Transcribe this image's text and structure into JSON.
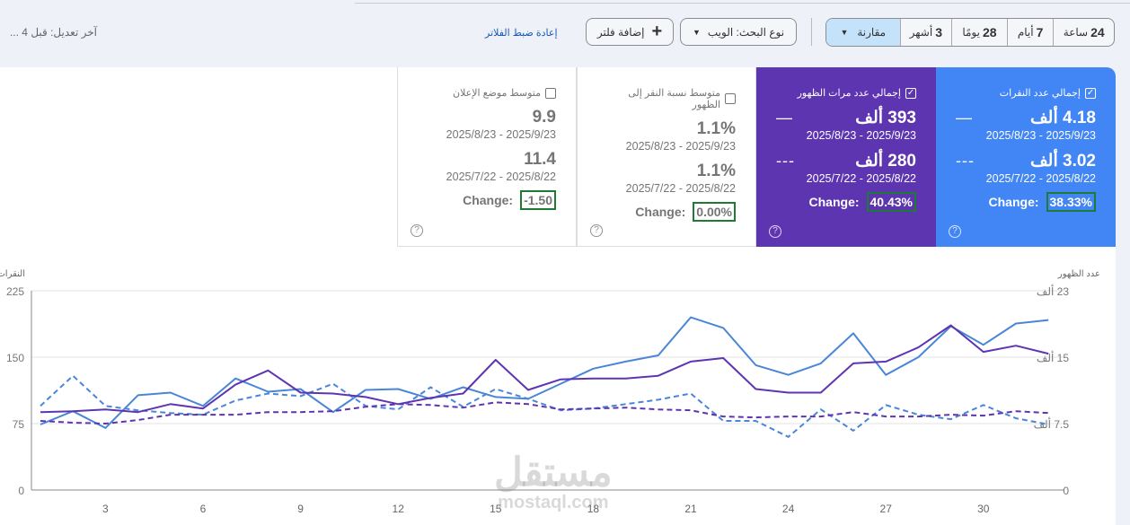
{
  "header": {
    "last_edit": "آخر تعديل: قبل 4 ...",
    "reset_filters": "إعادة ضبط الفلاتر",
    "add_filter": "إضافة فلتر",
    "search_type": "نوع البحث: الويب",
    "compare": "مقارنة",
    "ranges": [
      {
        "num": "24",
        "unit": "ساعة"
      },
      {
        "num": "7",
        "unit": "أيام"
      },
      {
        "num": "28",
        "unit": "يومًا"
      },
      {
        "num": "3",
        "unit": "أشهر"
      }
    ]
  },
  "cards": [
    {
      "title": "إجمالي عدد النقرات",
      "checked": true,
      "current": "4.18 ألف",
      "current_range": "2025/8/23 - 2025/9/23",
      "previous": "3.02 ألف",
      "previous_range": "2025/7/22 - 2025/8/22",
      "change_label": "Change:",
      "change": "38.33%",
      "color": "#4285f4"
    },
    {
      "title": "إجمالي عدد مرات الظهور",
      "checked": true,
      "current": "393 ألف",
      "current_range": "2025/8/23 - 2025/9/23",
      "previous": "280 ألف",
      "previous_range": "2025/7/22 - 2025/8/22",
      "change_label": "Change:",
      "change": "40.43%",
      "color": "#5e35b1"
    },
    {
      "title": "متوسط نسبة النقر إلى الظهور",
      "checked": false,
      "current": "1.1%",
      "current_range": "2025/8/23 - 2025/9/23",
      "previous": "1.1%",
      "previous_range": "2025/7/22 - 2025/8/22",
      "change_label": "Change:",
      "change": "0.00%"
    },
    {
      "title": "متوسط موضع الإعلان",
      "checked": false,
      "current": "9.9",
      "current_range": "2025/8/23 - 2025/9/23",
      "previous": "11.4",
      "previous_range": "2025/7/22 - 2025/8/22",
      "change_label": "Change:",
      "change": "-1.50"
    }
  ],
  "watermark": {
    "arabic": "مستقل",
    "latin": "mostaql.com"
  },
  "chart_data": {
    "type": "line",
    "left_axis": {
      "label": "النقرات",
      "ticks": [
        "0",
        "75",
        "150",
        "225"
      ],
      "range": [
        0,
        225
      ]
    },
    "right_axis": {
      "label": "عدد الظهور",
      "ticks": [
        "0",
        "7.5 ألف",
        "15 ألف",
        "23 ألف"
      ],
      "range": [
        0,
        22.5
      ],
      "unit": "thousand"
    },
    "x": [
      1,
      2,
      3,
      4,
      5,
      6,
      7,
      8,
      9,
      10,
      11,
      12,
      13,
      14,
      15,
      16,
      17,
      18,
      19,
      20,
      21,
      22,
      23,
      24,
      25,
      26,
      27,
      28,
      29,
      30,
      31,
      32
    ],
    "x_ticks": [
      "3",
      "6",
      "9",
      "12",
      "15",
      "18",
      "21",
      "24",
      "27",
      "30"
    ],
    "grid": true,
    "series": [
      {
        "metric": "clicks",
        "period": "current",
        "axis": "left",
        "style": "solid",
        "color": "#4a86d8",
        "values": [
          74,
          89,
          70,
          107,
          110,
          95,
          126,
          111,
          114,
          88,
          113,
          114,
          103,
          116,
          105,
          103,
          120,
          137,
          145,
          152,
          195,
          183,
          141,
          130,
          143,
          177,
          130,
          150,
          185,
          164,
          188,
          192
        ]
      },
      {
        "metric": "clicks",
        "period": "previous",
        "axis": "left",
        "style": "dashed",
        "color": "#4a86d8",
        "values": [
          95,
          129,
          95,
          90,
          87,
          85,
          101,
          109,
          106,
          120,
          95,
          91,
          116,
          94,
          114,
          103,
          90,
          92,
          97,
          102,
          109,
          78,
          78,
          60,
          91,
          67,
          96,
          85,
          80,
          96,
          81,
          74
        ]
      },
      {
        "metric": "impressions",
        "period": "current",
        "axis": "right",
        "style": "solid",
        "color": "#5e35b1",
        "values": [
          8.8,
          8.9,
          9.1,
          8.8,
          9.7,
          9.2,
          11.9,
          13.5,
          11.0,
          10.9,
          10.5,
          9.7,
          10.4,
          10.9,
          14.7,
          11.3,
          12.5,
          12.6,
          12.6,
          12.9,
          14.5,
          14.9,
          11.4,
          11.0,
          11.0,
          14.3,
          14.5,
          16.1,
          18.6,
          15.6,
          16.3,
          15.4
        ]
      },
      {
        "metric": "impressions",
        "period": "previous",
        "axis": "right",
        "style": "dashed",
        "color": "#5e35b1",
        "values": [
          7.8,
          7.6,
          7.5,
          7.9,
          8.5,
          8.5,
          8.5,
          8.8,
          8.8,
          8.9,
          9.4,
          9.7,
          9.6,
          9.3,
          9.9,
          9.7,
          9.1,
          9.2,
          9.3,
          9.1,
          9.0,
          8.3,
          8.2,
          8.3,
          8.3,
          8.8,
          8.3,
          8.3,
          8.5,
          8.4,
          8.9,
          8.7
        ]
      }
    ]
  }
}
